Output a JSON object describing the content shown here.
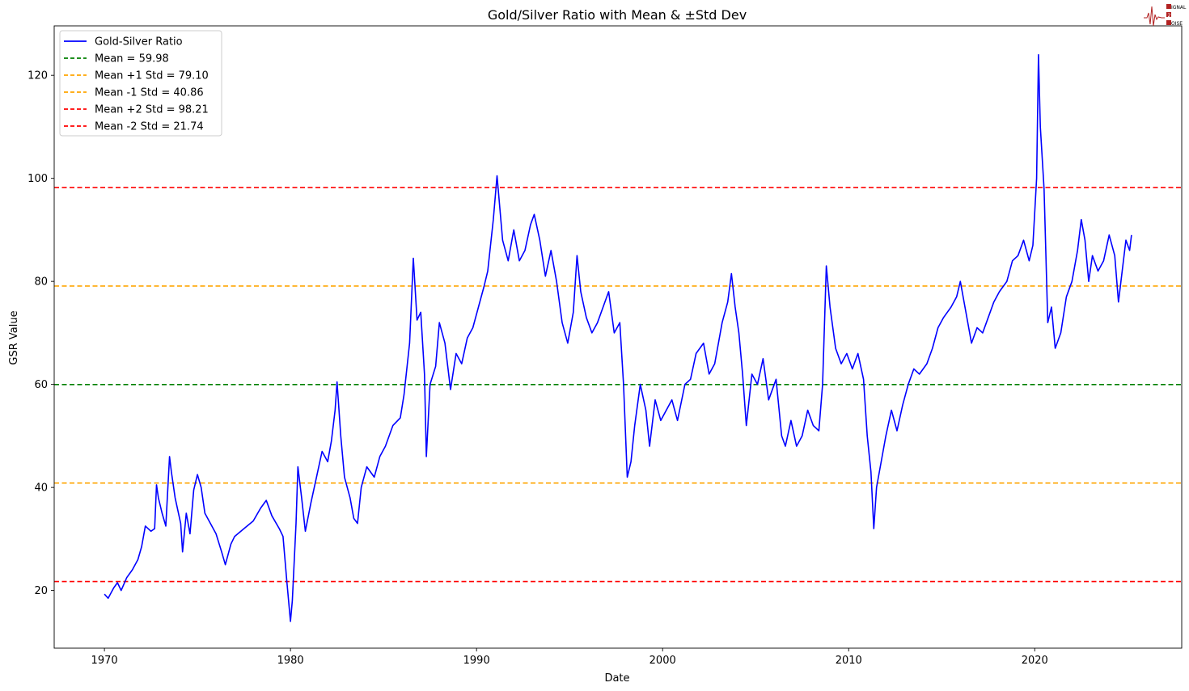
{
  "chart_data": {
    "type": "line",
    "title": "Gold/Silver Ratio with Mean & ±Std Dev",
    "xlabel": "Date",
    "ylabel": "GSR Value",
    "xlim": [
      1967.3,
      2027.9
    ],
    "ylim": [
      8.8,
      129.6
    ],
    "xticks": [
      1970,
      1980,
      1990,
      2000,
      2010,
      2020
    ],
    "yticks": [
      20,
      40,
      60,
      80,
      100,
      120
    ],
    "grid": false,
    "legend_position": "top-left",
    "series": [
      {
        "name": "Gold-Silver Ratio",
        "color": "#0000ff",
        "points": [
          [
            1970.0,
            19.3
          ],
          [
            1970.2,
            18.5
          ],
          [
            1970.5,
            20.5
          ],
          [
            1970.7,
            21.5
          ],
          [
            1970.9,
            20.0
          ],
          [
            1971.2,
            22.5
          ],
          [
            1971.5,
            24.0
          ],
          [
            1971.8,
            26.0
          ],
          [
            1972.0,
            28.5
          ],
          [
            1972.2,
            32.5
          ],
          [
            1972.5,
            31.5
          ],
          [
            1972.7,
            32.0
          ],
          [
            1972.8,
            40.5
          ],
          [
            1972.9,
            38.0
          ],
          [
            1973.1,
            35.0
          ],
          [
            1973.3,
            32.5
          ],
          [
            1973.5,
            46.0
          ],
          [
            1973.6,
            43.0
          ],
          [
            1973.8,
            38.0
          ],
          [
            1974.1,
            33.0
          ],
          [
            1974.2,
            27.5
          ],
          [
            1974.4,
            35.0
          ],
          [
            1974.6,
            31.0
          ],
          [
            1974.8,
            39.5
          ],
          [
            1975.0,
            42.5
          ],
          [
            1975.2,
            40.0
          ],
          [
            1975.4,
            35.0
          ],
          [
            1975.7,
            33.0
          ],
          [
            1976.0,
            31.0
          ],
          [
            1976.3,
            27.5
          ],
          [
            1976.5,
            25.0
          ],
          [
            1976.8,
            29.0
          ],
          [
            1977.0,
            30.5
          ],
          [
            1977.5,
            32.0
          ],
          [
            1978.0,
            33.5
          ],
          [
            1978.4,
            36.0
          ],
          [
            1978.7,
            37.5
          ],
          [
            1979.0,
            34.5
          ],
          [
            1979.4,
            32.0
          ],
          [
            1979.6,
            30.5
          ],
          [
            1979.8,
            22.0
          ],
          [
            1980.0,
            14.0
          ],
          [
            1980.1,
            18.0
          ],
          [
            1980.3,
            33.0
          ],
          [
            1980.4,
            44.0
          ],
          [
            1980.6,
            38.0
          ],
          [
            1980.8,
            31.5
          ],
          [
            1981.1,
            37.0
          ],
          [
            1981.4,
            42.0
          ],
          [
            1981.7,
            47.0
          ],
          [
            1982.0,
            45.0
          ],
          [
            1982.2,
            49.0
          ],
          [
            1982.4,
            55.0
          ],
          [
            1982.5,
            60.5
          ],
          [
            1982.7,
            50.0
          ],
          [
            1982.9,
            42.0
          ],
          [
            1983.2,
            38.0
          ],
          [
            1983.4,
            34.0
          ],
          [
            1983.6,
            33.0
          ],
          [
            1983.8,
            40.0
          ],
          [
            1984.1,
            44.0
          ],
          [
            1984.5,
            42.0
          ],
          [
            1984.8,
            46.0
          ],
          [
            1985.1,
            48.0
          ],
          [
            1985.5,
            52.0
          ],
          [
            1985.9,
            53.5
          ],
          [
            1986.1,
            58.0
          ],
          [
            1986.4,
            68.0
          ],
          [
            1986.6,
            84.5
          ],
          [
            1986.8,
            72.5
          ],
          [
            1987.0,
            74.0
          ],
          [
            1987.2,
            62.0
          ],
          [
            1987.3,
            46.0
          ],
          [
            1987.5,
            60.0
          ],
          [
            1987.8,
            63.5
          ],
          [
            1988.0,
            72.0
          ],
          [
            1988.3,
            68.0
          ],
          [
            1988.6,
            59.0
          ],
          [
            1988.9,
            66.0
          ],
          [
            1989.2,
            64.0
          ],
          [
            1989.5,
            69.0
          ],
          [
            1989.8,
            71.0
          ],
          [
            1990.1,
            75.0
          ],
          [
            1990.4,
            79.0
          ],
          [
            1990.6,
            82.0
          ],
          [
            1990.9,
            92.0
          ],
          [
            1991.1,
            100.5
          ],
          [
            1991.4,
            88.0
          ],
          [
            1991.7,
            84.0
          ],
          [
            1992.0,
            90.0
          ],
          [
            1992.3,
            84.0
          ],
          [
            1992.6,
            86.0
          ],
          [
            1992.9,
            91.0
          ],
          [
            1993.1,
            93.0
          ],
          [
            1993.4,
            88.0
          ],
          [
            1993.7,
            81.0
          ],
          [
            1994.0,
            86.0
          ],
          [
            1994.3,
            80.0
          ],
          [
            1994.6,
            72.0
          ],
          [
            1994.9,
            68.0
          ],
          [
            1995.2,
            74.0
          ],
          [
            1995.4,
            85.0
          ],
          [
            1995.6,
            78.0
          ],
          [
            1995.9,
            73.0
          ],
          [
            1996.2,
            70.0
          ],
          [
            1996.5,
            72.0
          ],
          [
            1996.8,
            75.0
          ],
          [
            1997.1,
            78.0
          ],
          [
            1997.4,
            70.0
          ],
          [
            1997.7,
            72.0
          ],
          [
            1997.9,
            60.0
          ],
          [
            1998.1,
            42.0
          ],
          [
            1998.3,
            45.0
          ],
          [
            1998.5,
            52.0
          ],
          [
            1998.8,
            60.0
          ],
          [
            1999.1,
            55.0
          ],
          [
            1999.3,
            48.0
          ],
          [
            1999.6,
            57.0
          ],
          [
            1999.9,
            53.0
          ],
          [
            2000.2,
            55.0
          ],
          [
            2000.5,
            57.0
          ],
          [
            2000.8,
            53.0
          ],
          [
            2001.2,
            60.0
          ],
          [
            2001.5,
            61.0
          ],
          [
            2001.8,
            66.0
          ],
          [
            2002.2,
            68.0
          ],
          [
            2002.5,
            62.0
          ],
          [
            2002.8,
            64.0
          ],
          [
            2003.2,
            72.0
          ],
          [
            2003.5,
            76.0
          ],
          [
            2003.7,
            81.5
          ],
          [
            2003.9,
            75.0
          ],
          [
            2004.1,
            70.0
          ],
          [
            2004.3,
            62.0
          ],
          [
            2004.5,
            52.0
          ],
          [
            2004.8,
            62.0
          ],
          [
            2005.1,
            60.0
          ],
          [
            2005.4,
            65.0
          ],
          [
            2005.7,
            57.0
          ],
          [
            2006.1,
            61.0
          ],
          [
            2006.4,
            50.0
          ],
          [
            2006.6,
            48.0
          ],
          [
            2006.9,
            53.0
          ],
          [
            2007.2,
            48.0
          ],
          [
            2007.5,
            50.0
          ],
          [
            2007.8,
            55.0
          ],
          [
            2008.1,
            52.0
          ],
          [
            2008.4,
            51.0
          ],
          [
            2008.6,
            60.0
          ],
          [
            2008.8,
            83.0
          ],
          [
            2009.0,
            75.0
          ],
          [
            2009.3,
            67.0
          ],
          [
            2009.6,
            64.0
          ],
          [
            2009.9,
            66.0
          ],
          [
            2010.2,
            63.0
          ],
          [
            2010.5,
            66.0
          ],
          [
            2010.8,
            61.0
          ],
          [
            2011.0,
            50.0
          ],
          [
            2011.2,
            43.0
          ],
          [
            2011.35,
            32.0
          ],
          [
            2011.5,
            40.0
          ],
          [
            2011.8,
            46.0
          ],
          [
            2012.0,
            50.0
          ],
          [
            2012.3,
            55.0
          ],
          [
            2012.6,
            51.0
          ],
          [
            2012.9,
            56.0
          ],
          [
            2013.2,
            60.0
          ],
          [
            2013.5,
            63.0
          ],
          [
            2013.8,
            62.0
          ],
          [
            2014.2,
            64.0
          ],
          [
            2014.5,
            67.0
          ],
          [
            2014.8,
            71.0
          ],
          [
            2015.1,
            73.0
          ],
          [
            2015.5,
            75.0
          ],
          [
            2015.8,
            77.0
          ],
          [
            2016.0,
            80.0
          ],
          [
            2016.3,
            74.0
          ],
          [
            2016.6,
            68.0
          ],
          [
            2016.9,
            71.0
          ],
          [
            2017.2,
            70.0
          ],
          [
            2017.5,
            73.0
          ],
          [
            2017.8,
            76.0
          ],
          [
            2018.1,
            78.0
          ],
          [
            2018.5,
            80.0
          ],
          [
            2018.8,
            84.0
          ],
          [
            2019.1,
            85.0
          ],
          [
            2019.4,
            88.0
          ],
          [
            2019.7,
            84.0
          ],
          [
            2019.9,
            87.0
          ],
          [
            2020.1,
            100.0
          ],
          [
            2020.2,
            124.0
          ],
          [
            2020.3,
            110.0
          ],
          [
            2020.5,
            98.0
          ],
          [
            2020.7,
            72.0
          ],
          [
            2020.9,
            75.0
          ],
          [
            2021.1,
            67.0
          ],
          [
            2021.4,
            70.0
          ],
          [
            2021.7,
            77.0
          ],
          [
            2022.0,
            80.0
          ],
          [
            2022.3,
            86.0
          ],
          [
            2022.5,
            92.0
          ],
          [
            2022.7,
            88.0
          ],
          [
            2022.9,
            80.0
          ],
          [
            2023.1,
            85.0
          ],
          [
            2023.4,
            82.0
          ],
          [
            2023.7,
            84.0
          ],
          [
            2024.0,
            89.0
          ],
          [
            2024.3,
            85.0
          ],
          [
            2024.5,
            76.0
          ],
          [
            2024.7,
            82.0
          ],
          [
            2024.9,
            88.0
          ],
          [
            2025.1,
            86.0
          ],
          [
            2025.2,
            89.0
          ]
        ]
      }
    ],
    "reference_lines": [
      {
        "label": "Mean = 59.98",
        "value": 59.98,
        "color": "#008000"
      },
      {
        "label": "Mean +1 Std = 79.10",
        "value": 79.1,
        "color": "#ffa500"
      },
      {
        "label": "Mean -1 Std = 40.86",
        "value": 40.86,
        "color": "#ffa500"
      },
      {
        "label": "Mean +2 Std = 98.21",
        "value": 98.21,
        "color": "#ff0000"
      },
      {
        "label": "Mean -2 Std = 21.74",
        "value": 21.74,
        "color": "#ff0000"
      }
    ]
  },
  "logo": {
    "lines": [
      "IGNAL",
      "2",
      "OISE"
    ],
    "color": "#b22222"
  }
}
